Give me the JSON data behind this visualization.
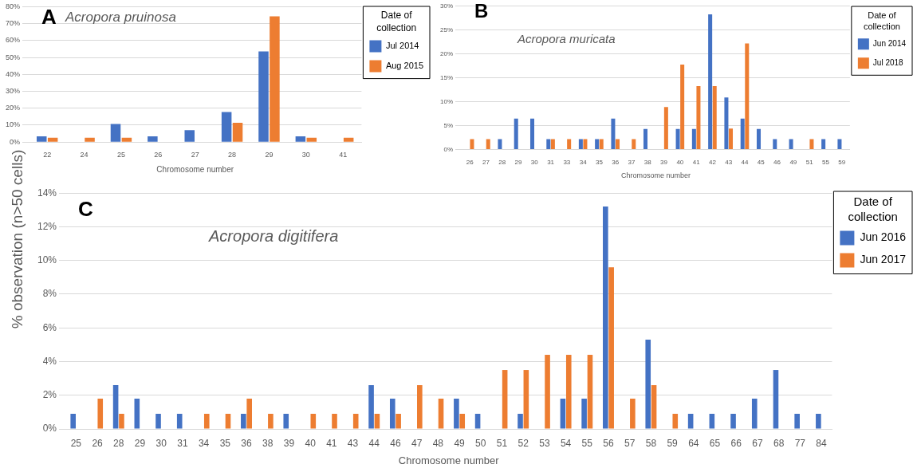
{
  "chart_data": [
    {
      "type": "bar",
      "title": "A",
      "subtitle": "Acropora pruinosa",
      "xlabel": "Chromosome number",
      "legend_title": "Date of collection",
      "legend": "top right",
      "grid": "y",
      "categories": [
        "22",
        "24",
        "25",
        "26",
        "27",
        "28",
        "29",
        "30",
        "41"
      ],
      "series": [
        {
          "name": "Jul 2014",
          "color": "#4472c4",
          "values": [
            3.4,
            null,
            10.7,
            3.4,
            7.1,
            17.8,
            53.6,
            3.4,
            null
          ]
        },
        {
          "name": "Aug 2015",
          "color": "#ed7d31",
          "values": [
            2.6,
            2.6,
            2.6,
            null,
            null,
            11.4,
            74.3,
            2.6,
            2.6
          ]
        }
      ],
      "ylim": [
        0,
        80
      ],
      "yticks": [
        {
          "value": 0,
          "label": "0%"
        },
        {
          "value": 10,
          "label": "10%"
        },
        {
          "value": 20,
          "label": "20%"
        },
        {
          "value": 30,
          "label": "30%"
        },
        {
          "value": 40,
          "label": "40%"
        },
        {
          "value": 50,
          "label": "50%"
        },
        {
          "value": 60,
          "label": "60%"
        },
        {
          "value": 70,
          "label": "70%"
        },
        {
          "value": 80,
          "label": "80%"
        }
      ]
    },
    {
      "type": "bar",
      "title": "B",
      "subtitle": "Acropora muricata",
      "xlabel": "Chromosome number",
      "legend_title": "Date of collection",
      "legend": "top right",
      "grid": "y",
      "categories": [
        "26",
        "27",
        "28",
        "29",
        "30",
        "31",
        "33",
        "34",
        "35",
        "36",
        "37",
        "38",
        "39",
        "40",
        "41",
        "42",
        "43",
        "44",
        "45",
        "46",
        "49",
        "51",
        "55",
        "59"
      ],
      "series": [
        {
          "name": "Jun 2014",
          "color": "#4472c4",
          "values": [
            null,
            null,
            2.2,
            6.5,
            6.5,
            2.2,
            null,
            2.2,
            2.2,
            6.5,
            null,
            4.3,
            null,
            4.3,
            4.3,
            28.3,
            10.9,
            6.5,
            4.3,
            2.2,
            2.2,
            null,
            2.2,
            2.2
          ]
        },
        {
          "name": "Jul 2018",
          "color": "#ed7d31",
          "values": [
            2.2,
            2.2,
            null,
            null,
            null,
            2.2,
            2.2,
            2.2,
            2.2,
            2.2,
            2.2,
            null,
            8.9,
            17.8,
            13.3,
            13.3,
            4.4,
            22.2,
            null,
            null,
            null,
            2.2,
            null,
            null
          ]
        }
      ],
      "ylim": [
        0,
        30
      ],
      "yticks": [
        {
          "value": 0,
          "label": "0%"
        },
        {
          "value": 5,
          "label": "5%"
        },
        {
          "value": 10,
          "label": "10%"
        },
        {
          "value": 15,
          "label": "15%"
        },
        {
          "value": 20,
          "label": "20%"
        },
        {
          "value": 25,
          "label": "25%"
        },
        {
          "value": 30,
          "label": "30%"
        }
      ]
    },
    {
      "type": "bar",
      "title": "C",
      "subtitle": "Acropora digitifera",
      "xlabel": "Chromosome number",
      "ylabel": "% observation (n>50 cells)",
      "legend_title": "Date of collection",
      "legend": "top right",
      "grid": "y",
      "categories": [
        "25",
        "26",
        "28",
        "29",
        "30",
        "31",
        "34",
        "35",
        "36",
        "38",
        "39",
        "40",
        "41",
        "43",
        "44",
        "46",
        "47",
        "48",
        "49",
        "50",
        "51",
        "52",
        "53",
        "54",
        "55",
        "56",
        "57",
        "58",
        "59",
        "64",
        "65",
        "66",
        "67",
        "68",
        "77",
        "84"
      ],
      "series": [
        {
          "name": "Jun 2016",
          "color": "#4472c4",
          "values": [
            0.9,
            null,
            2.6,
            1.8,
            0.9,
            0.9,
            null,
            null,
            0.9,
            null,
            0.9,
            null,
            null,
            null,
            2.6,
            1.8,
            null,
            null,
            1.8,
            0.9,
            null,
            0.9,
            null,
            1.8,
            1.8,
            13.2,
            null,
            5.3,
            null,
            0.9,
            0.9,
            0.9,
            1.8,
            3.5,
            0.9,
            0.9
          ]
        },
        {
          "name": "Jun 2017",
          "color": "#ed7d31",
          "values": [
            null,
            1.8,
            0.9,
            null,
            null,
            null,
            0.9,
            0.9,
            1.8,
            0.9,
            null,
            0.9,
            0.9,
            0.9,
            0.9,
            0.9,
            2.6,
            1.8,
            0.9,
            null,
            3.5,
            3.5,
            4.4,
            4.4,
            4.4,
            9.6,
            1.8,
            2.6,
            0.9,
            null,
            null,
            null,
            null,
            null,
            null,
            null
          ]
        }
      ],
      "ylim": [
        0,
        14
      ],
      "yticks": [
        {
          "value": 0,
          "label": "0%"
        },
        {
          "value": 2,
          "label": "2%"
        },
        {
          "value": 4,
          "label": "4%"
        },
        {
          "value": 6,
          "label": "6%"
        },
        {
          "value": 8,
          "label": "8%"
        },
        {
          "value": 10,
          "label": "10%"
        },
        {
          "value": 12,
          "label": "12%"
        },
        {
          "value": 14,
          "label": "14%"
        }
      ]
    }
  ]
}
